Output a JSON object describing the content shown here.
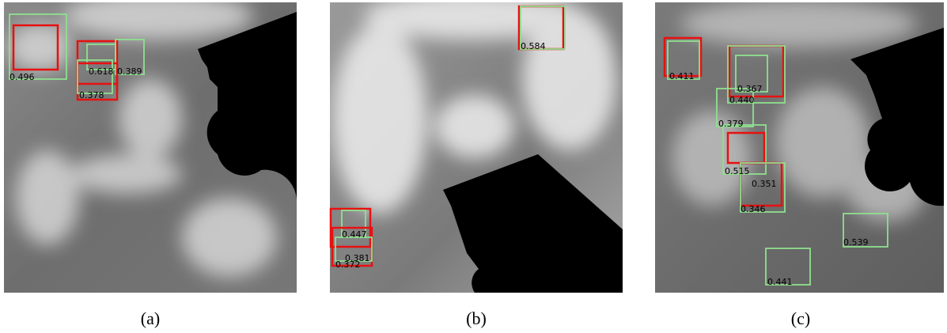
{
  "panels": [
    {
      "caption": "(a)",
      "scores": [
        "0.496",
        "0.618",
        "0.389",
        "0.378"
      ]
    },
    {
      "caption": "(b)",
      "scores": [
        "0.584",
        "0.447",
        "0.381",
        "0.372"
      ]
    },
    {
      "caption": "(c)",
      "scores": [
        "0.411",
        "0.367",
        "0.440",
        "0.379",
        "0.515",
        "0.351",
        "0.346",
        "0.539",
        "0.441"
      ]
    }
  ]
}
